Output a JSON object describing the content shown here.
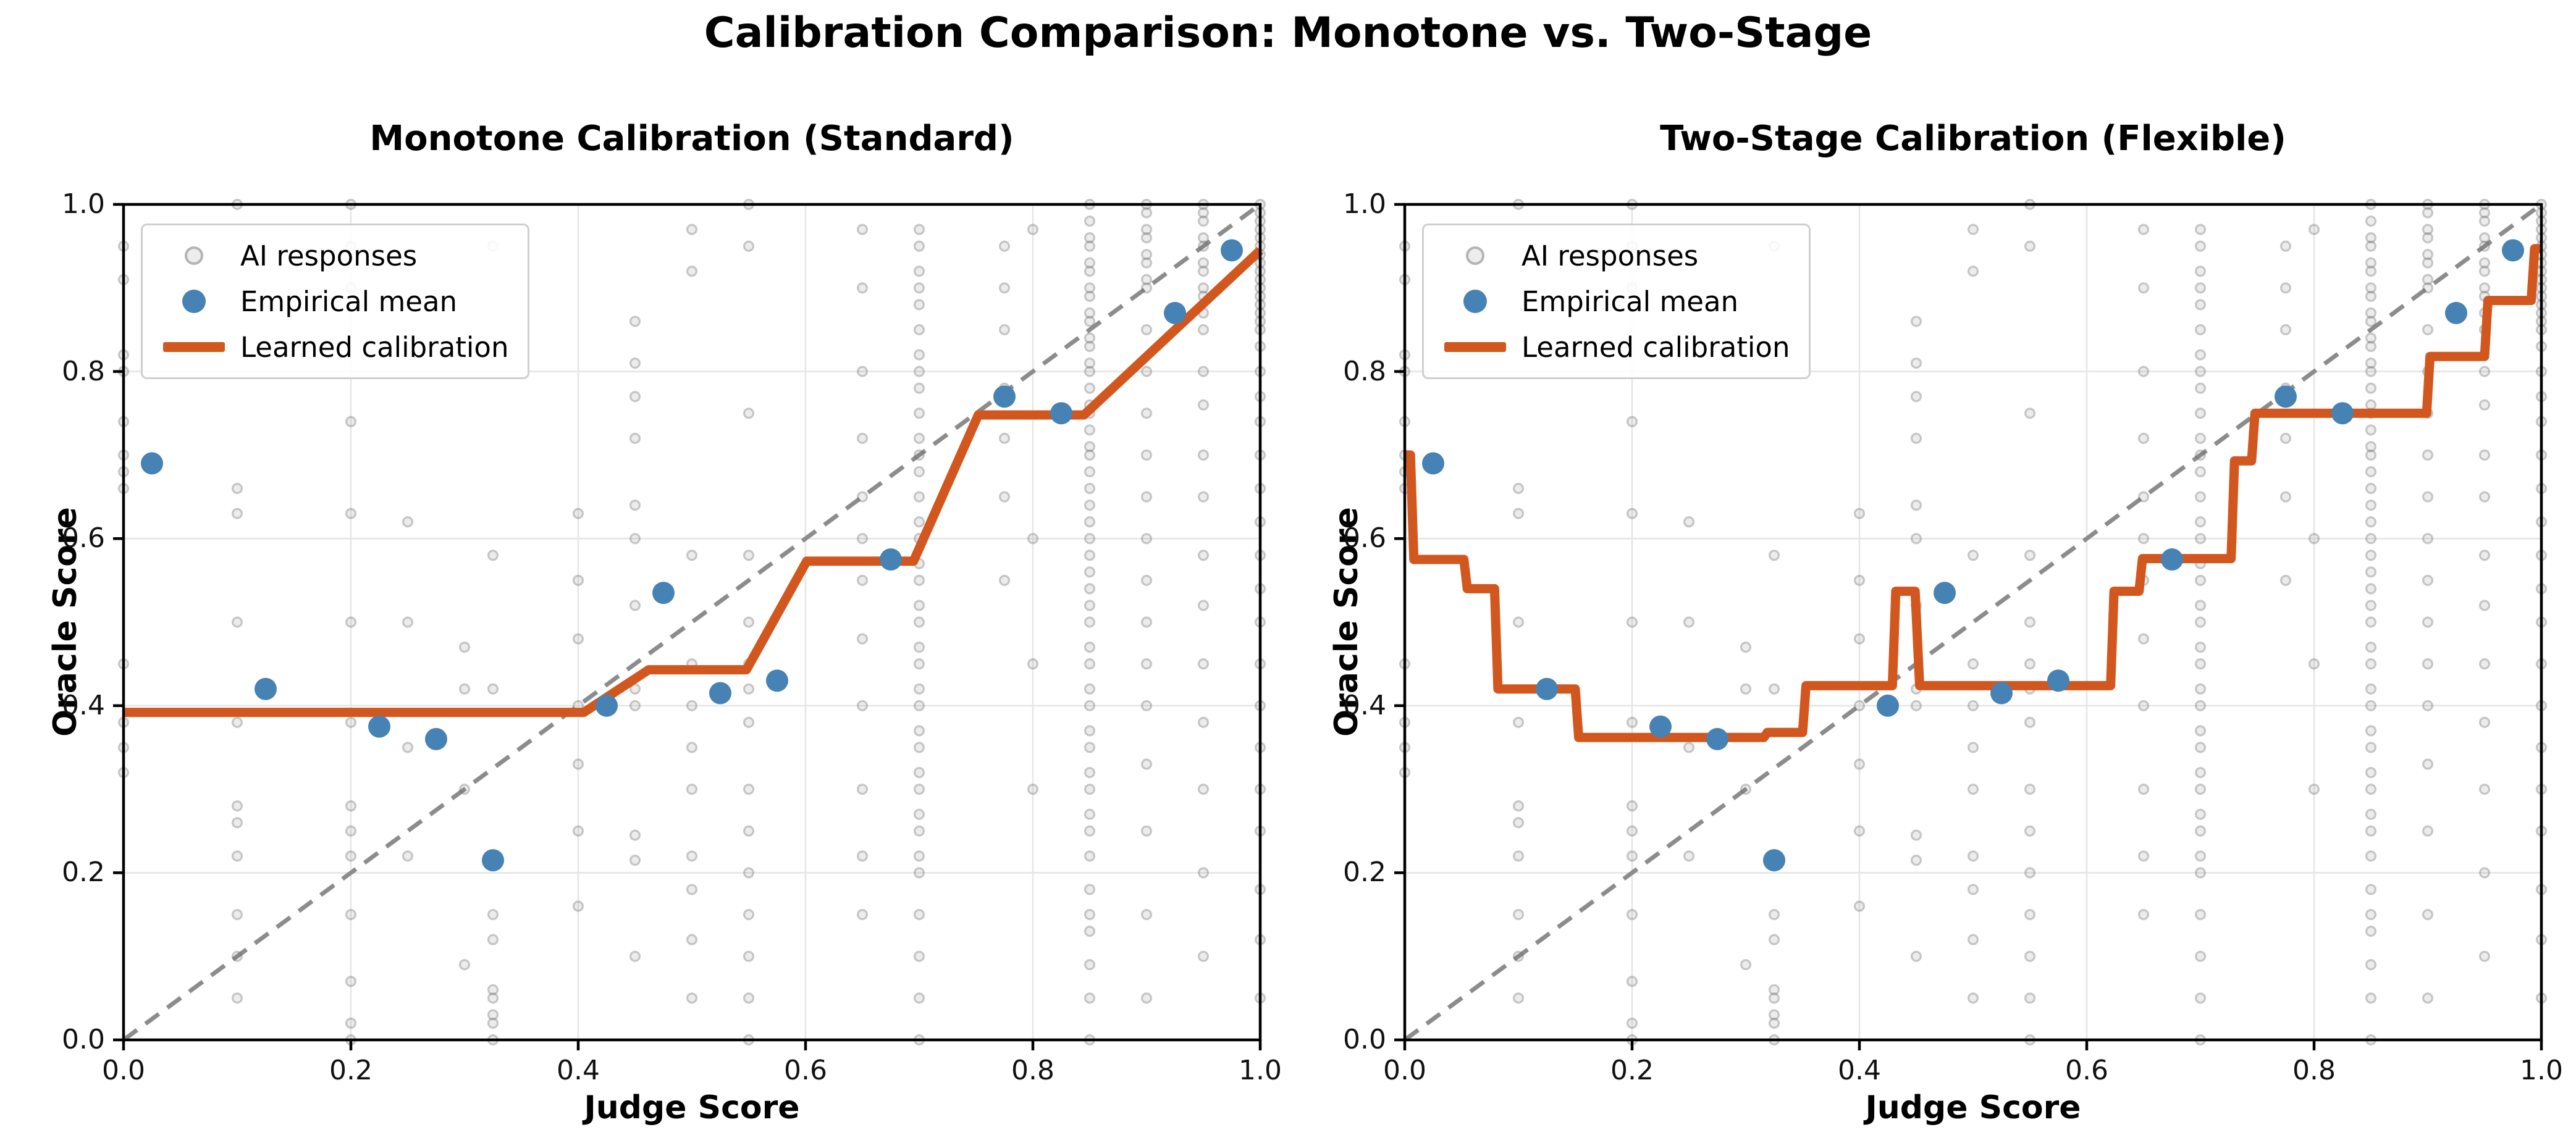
{
  "figure": {
    "suptitle": "Calibration Comparison: Monotone vs. Two-Stage",
    "background": "#ffffff",
    "colors": {
      "empirical_mean": "#4682B4",
      "calibration_line": "#D2571E",
      "scatter": "#6e6e6e",
      "diagonal": "#8c8c8c",
      "grid": "#e6e6e6",
      "spine": "#000000"
    }
  },
  "chart_data": [
    {
      "type": "scatter",
      "title": "Monotone Calibration (Standard)",
      "xlabel": "Judge Score",
      "ylabel": "Oracle Score",
      "xlim": [
        0.0,
        1.0
      ],
      "ylim": [
        0.0,
        1.0
      ],
      "xticks": [
        "0.0",
        "0.2",
        "0.4",
        "0.6",
        "0.8",
        "1.0"
      ],
      "yticks": [
        "0.0",
        "0.2",
        "0.4",
        "0.6",
        "0.8",
        "1.0"
      ],
      "grid": true,
      "legend_position": "upper left",
      "legend": [
        {
          "label": "AI responses",
          "marker": "faint-gray-dot"
        },
        {
          "label": "Empirical mean",
          "marker": "blue-dot"
        },
        {
          "label": "Learned calibration",
          "marker": "orange-line"
        }
      ],
      "diagonal_reference": {
        "from": [
          0,
          0
        ],
        "to": [
          1,
          1
        ],
        "style": "dashed"
      },
      "empirical_mean": [
        [
          0.025,
          0.69
        ],
        [
          0.125,
          0.42
        ],
        [
          0.225,
          0.375
        ],
        [
          0.275,
          0.36
        ],
        [
          0.325,
          0.215
        ],
        [
          0.425,
          0.4
        ],
        [
          0.475,
          0.535
        ],
        [
          0.525,
          0.415
        ],
        [
          0.575,
          0.43
        ],
        [
          0.675,
          0.575
        ],
        [
          0.775,
          0.77
        ],
        [
          0.825,
          0.75
        ],
        [
          0.925,
          0.87
        ],
        [
          0.975,
          0.945
        ]
      ],
      "calibration": [
        [
          0.0,
          0.392
        ],
        [
          0.405,
          0.392
        ],
        [
          0.462,
          0.443
        ],
        [
          0.548,
          0.443
        ],
        [
          0.601,
          0.573
        ],
        [
          0.695,
          0.573
        ],
        [
          0.752,
          0.748
        ],
        [
          0.845,
          0.748
        ],
        [
          1.0,
          0.945
        ]
      ],
      "ai_responses_columns": [
        {
          "x": 0.0,
          "ys": [
            0.95,
            0.91,
            0.82,
            0.8,
            0.74,
            0.7,
            0.68,
            0.66,
            0.45,
            0.38,
            0.35,
            0.32
          ]
        },
        {
          "x": 0.1,
          "ys": [
            1.0,
            0.66,
            0.63,
            0.5,
            0.38,
            0.28,
            0.26,
            0.22,
            0.15,
            0.1,
            0.05
          ]
        },
        {
          "x": 0.2,
          "ys": [
            1.0,
            0.95,
            0.9,
            0.74,
            0.63,
            0.5,
            0.38,
            0.28,
            0.25,
            0.22,
            0.15,
            0.07,
            0.02,
            0.0
          ]
        },
        {
          "x": 0.25,
          "ys": [
            0.62,
            0.5,
            0.35,
            0.22
          ]
        },
        {
          "x": 0.3,
          "ys": [
            0.47,
            0.42,
            0.3,
            0.09
          ]
        },
        {
          "x": 0.325,
          "ys": [
            0.95,
            0.58,
            0.42,
            0.15,
            0.12,
            0.06,
            0.05,
            0.03,
            0.02,
            0.0
          ]
        },
        {
          "x": 0.4,
          "ys": [
            0.63,
            0.55,
            0.48,
            0.4,
            0.33,
            0.25,
            0.16
          ]
        },
        {
          "x": 0.45,
          "ys": [
            0.86,
            0.81,
            0.77,
            0.72,
            0.64,
            0.6,
            0.52,
            0.42,
            0.4,
            0.245,
            0.215,
            0.1
          ]
        },
        {
          "x": 0.5,
          "ys": [
            0.97,
            0.92,
            0.58,
            0.45,
            0.4,
            0.35,
            0.3,
            0.22,
            0.18,
            0.12,
            0.05
          ]
        },
        {
          "x": 0.55,
          "ys": [
            1.0,
            0.95,
            0.75,
            0.58,
            0.5,
            0.45,
            0.42,
            0.38,
            0.3,
            0.25,
            0.2,
            0.15,
            0.1,
            0.05,
            0.0
          ]
        },
        {
          "x": 0.65,
          "ys": [
            0.97,
            0.9,
            0.8,
            0.72,
            0.65,
            0.6,
            0.55,
            0.48,
            0.4,
            0.3,
            0.22,
            0.15
          ]
        },
        {
          "x": 0.7,
          "ys": [
            0.97,
            0.95,
            0.92,
            0.9,
            0.88,
            0.85,
            0.82,
            0.8,
            0.78,
            0.75,
            0.72,
            0.7,
            0.68,
            0.65,
            0.62,
            0.6,
            0.57,
            0.55,
            0.52,
            0.5,
            0.47,
            0.45,
            0.42,
            0.4,
            0.37,
            0.35,
            0.32,
            0.3,
            0.27,
            0.25,
            0.22,
            0.2,
            0.15,
            0.1,
            0.05,
            0.0
          ]
        },
        {
          "x": 0.775,
          "ys": [
            0.95,
            0.9,
            0.85,
            0.78,
            0.72,
            0.65,
            0.55
          ]
        },
        {
          "x": 0.8,
          "ys": [
            0.97,
            0.6,
            0.45,
            0.3
          ]
        },
        {
          "x": 0.85,
          "ys": [
            1.0,
            0.98,
            0.96,
            0.95,
            0.93,
            0.92,
            0.9,
            0.89,
            0.87,
            0.86,
            0.84,
            0.83,
            0.81,
            0.8,
            0.78,
            0.76,
            0.75,
            0.73,
            0.71,
            0.7,
            0.68,
            0.66,
            0.64,
            0.62,
            0.6,
            0.58,
            0.56,
            0.54,
            0.52,
            0.5,
            0.47,
            0.45,
            0.42,
            0.4,
            0.37,
            0.35,
            0.32,
            0.3,
            0.27,
            0.25,
            0.22,
            0.18,
            0.15,
            0.13,
            0.09,
            0.05,
            0.0
          ]
        },
        {
          "x": 0.9,
          "ys": [
            1.0,
            0.99,
            0.97,
            0.96,
            0.94,
            0.93,
            0.91,
            0.9,
            0.85,
            0.8,
            0.75,
            0.7,
            0.65,
            0.6,
            0.55,
            0.5,
            0.45,
            0.4,
            0.33,
            0.25,
            0.15,
            0.05
          ]
        },
        {
          "x": 0.95,
          "ys": [
            1.0,
            0.99,
            0.98,
            0.96,
            0.95,
            0.93,
            0.92,
            0.9,
            0.89,
            0.87,
            0.85,
            0.8,
            0.76,
            0.7,
            0.65,
            0.58,
            0.52,
            0.45,
            0.38,
            0.3,
            0.2,
            0.1
          ]
        },
        {
          "x": 1.0,
          "ys": [
            1.0,
            0.99,
            0.98,
            0.97,
            0.96,
            0.95,
            0.94,
            0.93,
            0.92,
            0.91,
            0.9,
            0.89,
            0.88,
            0.87,
            0.86,
            0.85,
            0.83,
            0.8,
            0.77,
            0.74,
            0.7,
            0.66,
            0.62,
            0.58,
            0.54,
            0.5,
            0.45,
            0.4,
            0.35,
            0.3,
            0.25,
            0.18,
            0.12,
            0.05
          ]
        }
      ]
    },
    {
      "type": "scatter",
      "title": "Two-Stage Calibration (Flexible)",
      "xlabel": "Judge Score",
      "ylabel": "Oracle Score",
      "xlim": [
        0.0,
        1.0
      ],
      "ylim": [
        0.0,
        1.0
      ],
      "xticks": [
        "0.0",
        "0.2",
        "0.4",
        "0.6",
        "0.8",
        "1.0"
      ],
      "yticks": [
        "0.0",
        "0.2",
        "0.4",
        "0.6",
        "0.8",
        "1.0"
      ],
      "grid": true,
      "legend_position": "upper left",
      "legend": [
        {
          "label": "AI responses",
          "marker": "faint-gray-dot"
        },
        {
          "label": "Empirical mean",
          "marker": "blue-dot"
        },
        {
          "label": "Learned calibration",
          "marker": "orange-line"
        }
      ],
      "diagonal_reference": {
        "from": [
          0,
          0
        ],
        "to": [
          1,
          1
        ],
        "style": "dashed"
      },
      "empirical_mean": [
        [
          0.025,
          0.69
        ],
        [
          0.125,
          0.42
        ],
        [
          0.225,
          0.375
        ],
        [
          0.275,
          0.36
        ],
        [
          0.325,
          0.215
        ],
        [
          0.425,
          0.4
        ],
        [
          0.475,
          0.535
        ],
        [
          0.525,
          0.415
        ],
        [
          0.575,
          0.43
        ],
        [
          0.675,
          0.575
        ],
        [
          0.775,
          0.77
        ],
        [
          0.825,
          0.75
        ],
        [
          0.925,
          0.87
        ],
        [
          0.975,
          0.945
        ]
      ],
      "calibration": [
        [
          0.0,
          0.7
        ],
        [
          0.005,
          0.7
        ],
        [
          0.008,
          0.575
        ],
        [
          0.052,
          0.575
        ],
        [
          0.055,
          0.54
        ],
        [
          0.079,
          0.54
        ],
        [
          0.082,
          0.42
        ],
        [
          0.15,
          0.42
        ],
        [
          0.153,
          0.362
        ],
        [
          0.316,
          0.362
        ],
        [
          0.319,
          0.368
        ],
        [
          0.35,
          0.368
        ],
        [
          0.353,
          0.424
        ],
        [
          0.429,
          0.424
        ],
        [
          0.432,
          0.537
        ],
        [
          0.449,
          0.537
        ],
        [
          0.453,
          0.424
        ],
        [
          0.621,
          0.424
        ],
        [
          0.624,
          0.537
        ],
        [
          0.646,
          0.537
        ],
        [
          0.649,
          0.576
        ],
        [
          0.727,
          0.576
        ],
        [
          0.73,
          0.693
        ],
        [
          0.745,
          0.693
        ],
        [
          0.748,
          0.75
        ],
        [
          0.899,
          0.75
        ],
        [
          0.902,
          0.818
        ],
        [
          0.95,
          0.818
        ],
        [
          0.953,
          0.885
        ],
        [
          0.991,
          0.885
        ],
        [
          0.994,
          0.947
        ],
        [
          1.0,
          0.947
        ]
      ],
      "ai_responses_same_as_panel": 0
    }
  ]
}
